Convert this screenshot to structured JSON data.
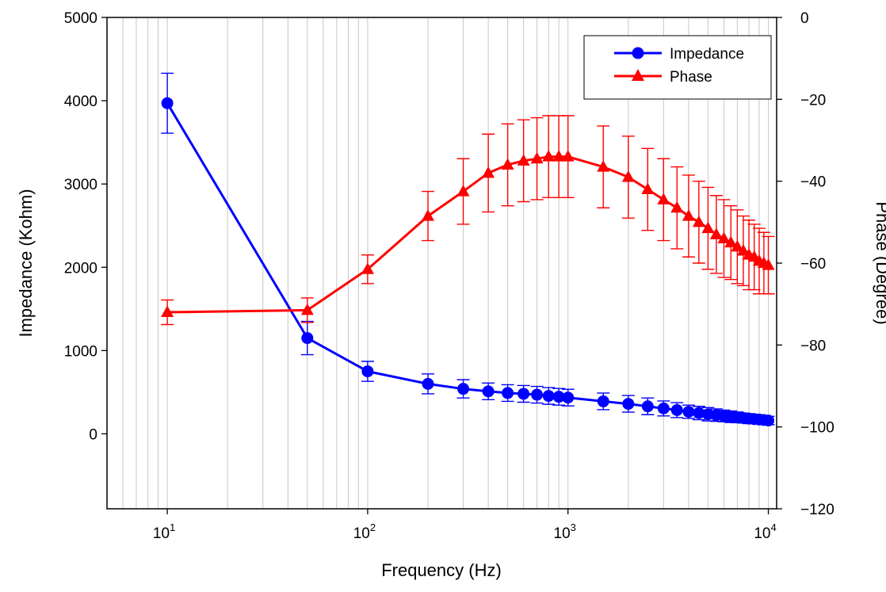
{
  "chart_data": {
    "type": "line",
    "xlabel": "Frequency (Hz)",
    "ylabel_left": "Impedance (Kohm)",
    "ylabel_right": "Phase (Degree)",
    "x_scale": "log",
    "xlim": [
      5,
      11000
    ],
    "x_ticks": [
      {
        "value": 10,
        "base": "10",
        "exp": "1"
      },
      {
        "value": 100,
        "base": "10",
        "exp": "2"
      },
      {
        "value": 1000,
        "base": "10",
        "exp": "3"
      },
      {
        "value": 10000,
        "base": "10",
        "exp": "4"
      }
    ],
    "ylim_left": [
      -900,
      5000
    ],
    "y_ticks_left": [
      0,
      1000,
      2000,
      3000,
      4000,
      5000
    ],
    "ylim_right": [
      -120,
      0
    ],
    "y_ticks_right": [
      -120,
      -100,
      -80,
      -60,
      -40,
      -20,
      0
    ],
    "grid": "vertical-log-minor",
    "legend": {
      "position": "top-right"
    },
    "series": [
      {
        "name": "Impedance",
        "axis": "left",
        "color": "#0000ff",
        "marker": "circle",
        "points": [
          {
            "x": 10,
            "y": 3970,
            "err": 360
          },
          {
            "x": 50,
            "y": 1150,
            "err": 200
          },
          {
            "x": 100,
            "y": 750,
            "err": 120
          },
          {
            "x": 200,
            "y": 600,
            "err": 120
          },
          {
            "x": 300,
            "y": 540,
            "err": 110
          },
          {
            "x": 400,
            "y": 510,
            "err": 100
          },
          {
            "x": 500,
            "y": 490,
            "err": 100
          },
          {
            "x": 600,
            "y": 480,
            "err": 100
          },
          {
            "x": 700,
            "y": 470,
            "err": 100
          },
          {
            "x": 800,
            "y": 455,
            "err": 100
          },
          {
            "x": 900,
            "y": 445,
            "err": 100
          },
          {
            "x": 1000,
            "y": 435,
            "err": 100
          },
          {
            "x": 1500,
            "y": 390,
            "err": 100
          },
          {
            "x": 2000,
            "y": 360,
            "err": 100
          },
          {
            "x": 2500,
            "y": 330,
            "err": 100
          },
          {
            "x": 3000,
            "y": 305,
            "err": 90
          },
          {
            "x": 3500,
            "y": 285,
            "err": 90
          },
          {
            "x": 4000,
            "y": 265,
            "err": 80
          },
          {
            "x": 4500,
            "y": 250,
            "err": 80
          },
          {
            "x": 5000,
            "y": 235,
            "err": 80
          },
          {
            "x": 5500,
            "y": 225,
            "err": 75
          },
          {
            "x": 6000,
            "y": 215,
            "err": 70
          },
          {
            "x": 6500,
            "y": 205,
            "err": 70
          },
          {
            "x": 7000,
            "y": 198,
            "err": 65
          },
          {
            "x": 7500,
            "y": 190,
            "err": 60
          },
          {
            "x": 8000,
            "y": 183,
            "err": 60
          },
          {
            "x": 8500,
            "y": 177,
            "err": 55
          },
          {
            "x": 9000,
            "y": 172,
            "err": 55
          },
          {
            "x": 9500,
            "y": 166,
            "err": 50
          },
          {
            "x": 10000,
            "y": 160,
            "err": 50
          }
        ]
      },
      {
        "name": "Phase",
        "axis": "right",
        "color": "#ff0000",
        "marker": "triangle",
        "points": [
          {
            "x": 10,
            "y": -72,
            "err": 3
          },
          {
            "x": 50,
            "y": -71.5,
            "err": 3
          },
          {
            "x": 100,
            "y": -61.5,
            "err": 3.5
          },
          {
            "x": 200,
            "y": -48.5,
            "err": 6
          },
          {
            "x": 300,
            "y": -42.5,
            "err": 8
          },
          {
            "x": 400,
            "y": -38,
            "err": 9.5
          },
          {
            "x": 500,
            "y": -36,
            "err": 10
          },
          {
            "x": 600,
            "y": -35,
            "err": 10
          },
          {
            "x": 700,
            "y": -34.5,
            "err": 10
          },
          {
            "x": 800,
            "y": -34,
            "err": 10
          },
          {
            "x": 900,
            "y": -34,
            "err": 10
          },
          {
            "x": 1000,
            "y": -34,
            "err": 10
          },
          {
            "x": 1500,
            "y": -36.5,
            "err": 10
          },
          {
            "x": 2000,
            "y": -39,
            "err": 10
          },
          {
            "x": 2500,
            "y": -42,
            "err": 10
          },
          {
            "x": 3000,
            "y": -44.5,
            "err": 10
          },
          {
            "x": 3500,
            "y": -46.5,
            "err": 10
          },
          {
            "x": 4000,
            "y": -48.5,
            "err": 10
          },
          {
            "x": 4500,
            "y": -50,
            "err": 10
          },
          {
            "x": 5000,
            "y": -51.5,
            "err": 10
          },
          {
            "x": 5500,
            "y": -53,
            "err": 9.5
          },
          {
            "x": 6000,
            "y": -54,
            "err": 9.5
          },
          {
            "x": 6500,
            "y": -55,
            "err": 9
          },
          {
            "x": 7000,
            "y": -56,
            "err": 9
          },
          {
            "x": 7500,
            "y": -57,
            "err": 8.5
          },
          {
            "x": 8000,
            "y": -58,
            "err": 8.5
          },
          {
            "x": 8500,
            "y": -58.5,
            "err": 8
          },
          {
            "x": 9000,
            "y": -59.5,
            "err": 8
          },
          {
            "x": 9500,
            "y": -60,
            "err": 7.5
          },
          {
            "x": 10000,
            "y": -60.5,
            "err": 7
          }
        ]
      }
    ]
  }
}
